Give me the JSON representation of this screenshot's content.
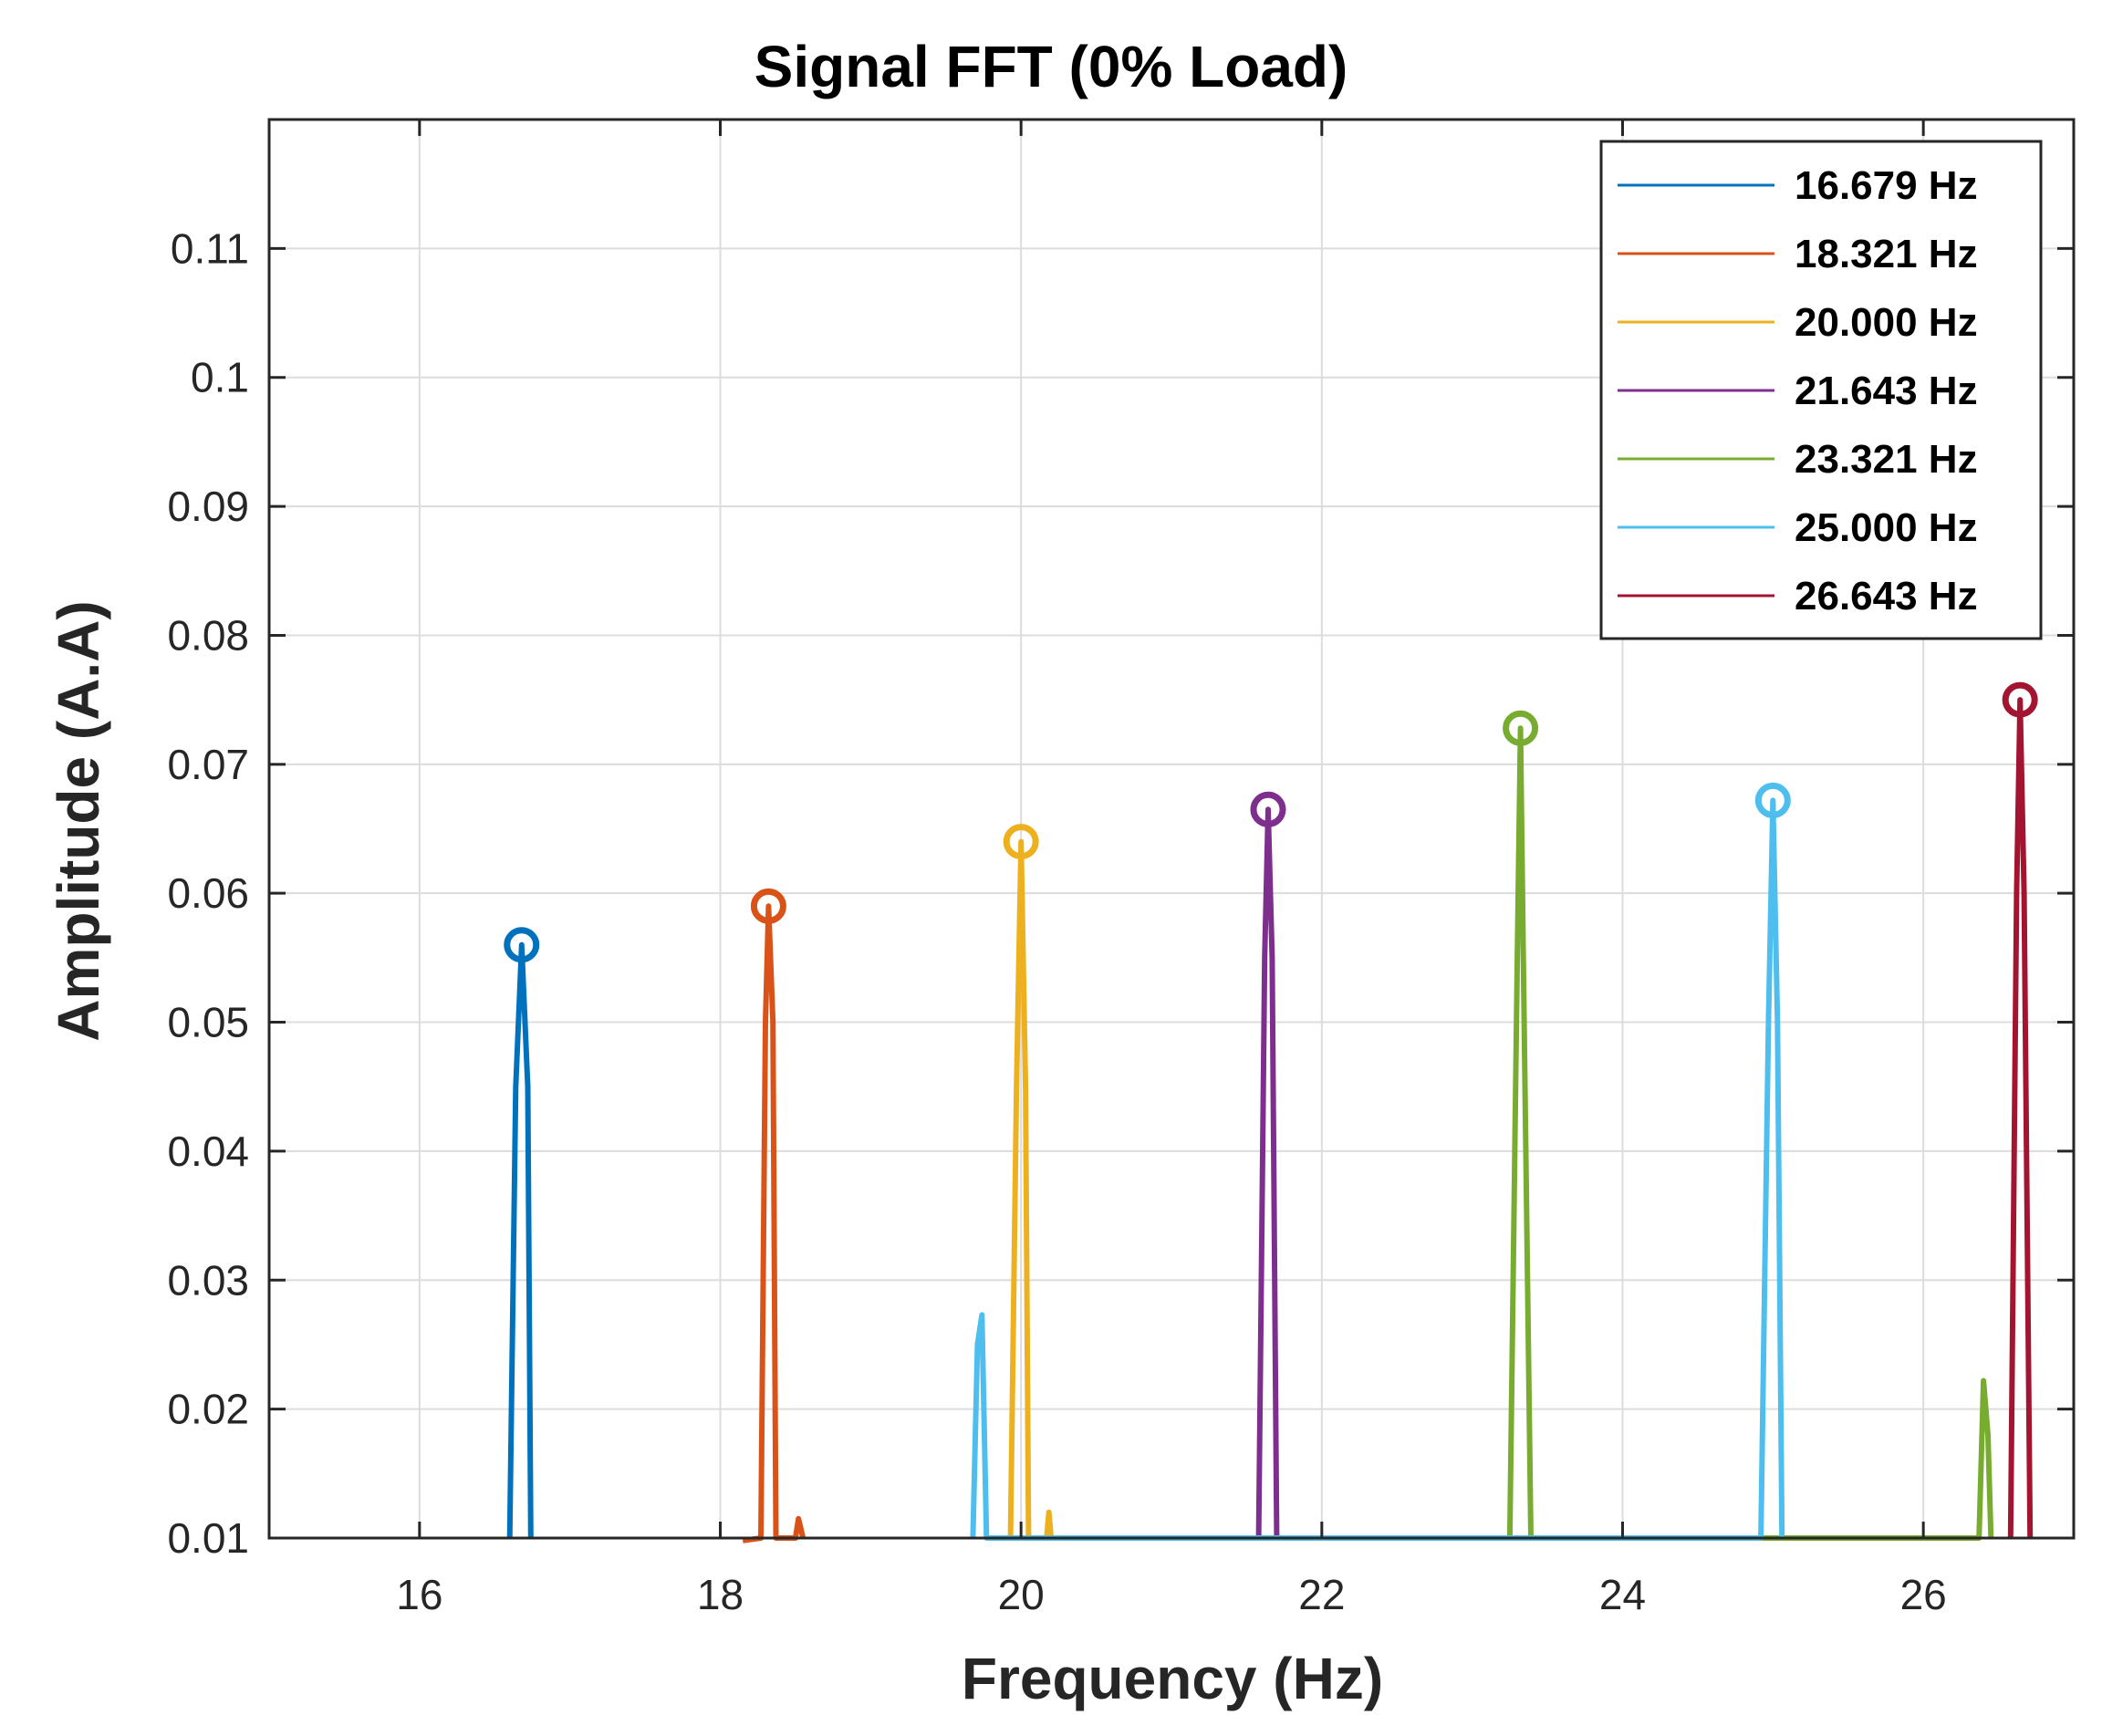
{
  "chart_data": {
    "type": "line",
    "title": "Signal FFT (0% Load)",
    "xlabel": "Frequency (Hz)",
    "ylabel": "Amplitude (A.A)",
    "xlim": [
      15,
      27
    ],
    "ylim": [
      0.01,
      0.12
    ],
    "xticks": [
      16,
      18,
      20,
      22,
      24,
      26
    ],
    "yticks": [
      0.01,
      0.02,
      0.03,
      0.04,
      0.05,
      0.06,
      0.07,
      0.08,
      0.09,
      0.1,
      0.11
    ],
    "xtick_labels": [
      "16",
      "18",
      "20",
      "22",
      "24",
      "26"
    ],
    "ytick_labels": [
      "0.01",
      "0.02",
      "0.03",
      "0.04",
      "0.05",
      "0.06",
      "0.07",
      "0.08",
      "0.09",
      "0.1",
      "0.11"
    ],
    "grid": true,
    "legend_position": "top-right",
    "series": [
      {
        "name": "16.679 Hz",
        "color": "#0072BD",
        "peak": {
          "x": 16.679,
          "y": 0.056
        },
        "points": [
          [
            16.6,
            0.01
          ],
          [
            16.64,
            0.045
          ],
          [
            16.679,
            0.056
          ],
          [
            16.72,
            0.045
          ],
          [
            16.74,
            0.01
          ]
        ]
      },
      {
        "name": "18.321 Hz",
        "color": "#D95319",
        "peak": {
          "x": 18.321,
          "y": 0.059
        },
        "points": [
          [
            18.15,
            0.0098
          ],
          [
            18.27,
            0.01
          ],
          [
            18.3,
            0.05
          ],
          [
            18.321,
            0.059
          ],
          [
            18.35,
            0.05
          ],
          [
            18.37,
            0.01
          ],
          [
            18.5,
            0.01
          ],
          [
            18.52,
            0.0115
          ],
          [
            18.55,
            0.01
          ]
        ]
      },
      {
        "name": "20.000 Hz",
        "color": "#EDB120",
        "peak": {
          "x": 20.0,
          "y": 0.064
        },
        "points": [
          [
            19.93,
            0.01
          ],
          [
            19.97,
            0.045
          ],
          [
            20.0,
            0.064
          ],
          [
            20.03,
            0.045
          ],
          [
            20.05,
            0.01
          ],
          [
            20.17,
            0.01
          ],
          [
            20.185,
            0.012
          ],
          [
            20.2,
            0.01
          ]
        ]
      },
      {
        "name": "21.643 Hz",
        "color": "#7E2F8E",
        "peak": {
          "x": 21.643,
          "y": 0.0665
        },
        "points": [
          [
            21.58,
            0.01
          ],
          [
            21.62,
            0.055
          ],
          [
            21.643,
            0.0665
          ],
          [
            21.67,
            0.055
          ],
          [
            21.7,
            0.01
          ]
        ]
      },
      {
        "name": "23.321 Hz",
        "color": "#77AC30",
        "peak": {
          "x": 23.321,
          "y": 0.0728
        },
        "points": [
          [
            23.25,
            0.01
          ],
          [
            23.3,
            0.055
          ],
          [
            23.321,
            0.0728
          ],
          [
            23.34,
            0.055
          ],
          [
            23.39,
            0.01
          ],
          [
            26.37,
            0.01
          ],
          [
            26.4,
            0.0222
          ],
          [
            26.43,
            0.018
          ],
          [
            26.45,
            0.01
          ]
        ]
      },
      {
        "name": "25.000 Hz",
        "color": "#4DBEEE",
        "peak": {
          "x": 25.0,
          "y": 0.0672
        },
        "points": [
          [
            19.68,
            0.01
          ],
          [
            19.71,
            0.025
          ],
          [
            19.74,
            0.0273
          ],
          [
            19.77,
            0.01
          ],
          [
            24.92,
            0.01
          ],
          [
            24.97,
            0.05
          ],
          [
            25.0,
            0.0672
          ],
          [
            25.03,
            0.05
          ],
          [
            25.06,
            0.01
          ]
        ]
      },
      {
        "name": "26.643 Hz",
        "color": "#A2142F",
        "peak": {
          "x": 26.643,
          "y": 0.075
        },
        "points": [
          [
            26.58,
            0.01
          ],
          [
            26.62,
            0.06
          ],
          [
            26.643,
            0.075
          ],
          [
            26.67,
            0.06
          ],
          [
            26.71,
            0.01
          ]
        ]
      }
    ]
  }
}
